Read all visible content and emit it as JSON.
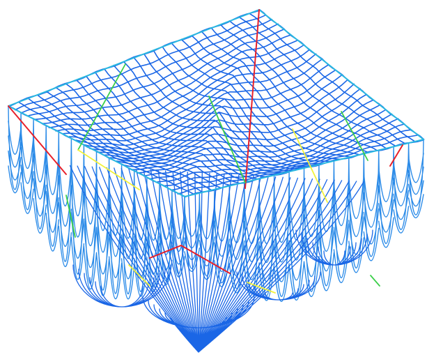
{
  "colors": {
    "background": "#ffffff",
    "mesh_primary": "#1a66e6",
    "mesh_secondary": "#2b8be8",
    "edge_cyan": "#29b8e0",
    "edge_red": "#e8202a",
    "edge_green": "#3ccf4a",
    "edge_yellow": "#f2f23a"
  },
  "icons": {
    "mesh": "wireframe-mesh-icon"
  }
}
